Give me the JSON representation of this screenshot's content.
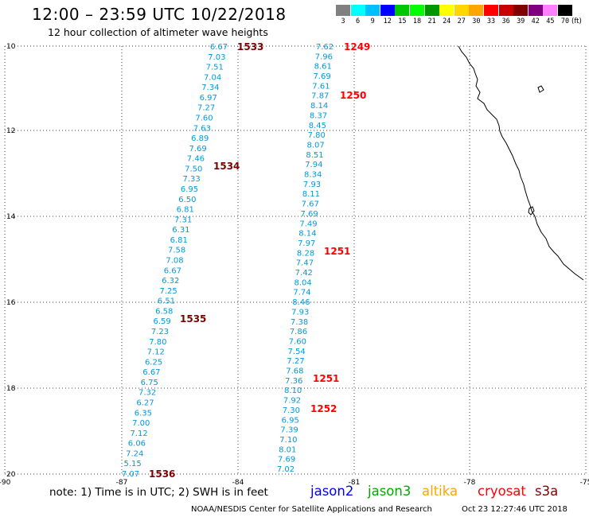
{
  "header": {
    "title": "12:00 – 23:59 UTC 10/22/2018",
    "subtitle": "12 hour collection of altimeter wave heights"
  },
  "legend": {
    "colors": [
      "#808080",
      "#00ffff",
      "#00bfff",
      "#0000ff",
      "#00c800",
      "#00ff00",
      "#009600",
      "#ffff00",
      "#ffd700",
      "#ffa500",
      "#ff0000",
      "#c80000",
      "#800000",
      "#800080",
      "#ff80ff",
      "#000000"
    ],
    "levels": [
      "3",
      "6",
      "9",
      "12",
      "15",
      "18",
      "21",
      "24",
      "27",
      "30",
      "33",
      "36",
      "39",
      "42",
      "45",
      "70"
    ],
    "unit": "(ft)"
  },
  "axes": {
    "lat_labels": [
      "10",
      "12",
      "14",
      "16",
      "18",
      "20"
    ],
    "lon_labels": [
      "-90",
      "-87",
      "-84",
      "-81",
      "-78",
      "-75"
    ]
  },
  "tracks": [
    {
      "color": "#0099dd",
      "values": [
        "6.67",
        "7.03",
        "7.51",
        "7.04",
        "7.34",
        "6.97",
        "7.27",
        "7.60",
        "7.63",
        "6.89",
        "7.69",
        "7.46",
        "7.50",
        "7.33",
        "6.95",
        "6.50",
        "6.81",
        "7.31",
        "6.31",
        "6.81",
        "7.58",
        "7.08",
        "6.67",
        "6.32",
        "7.25",
        "6.51",
        "6.58",
        "6.59",
        "7.23",
        "7.80",
        "7.12",
        "6.25",
        "6.67",
        "6.75",
        "7.32",
        "6.27",
        "6.35",
        "7.00",
        "7.12",
        "6.06",
        "7.24",
        "5.15",
        "7.07"
      ]
    },
    {
      "color": "#0099dd",
      "values": [
        "7.62",
        "7.96",
        "8.61",
        "7.69",
        "7.61",
        "7.87",
        "8.14",
        "8.37",
        "8.45",
        "7.80",
        "8.07",
        "8.51",
        "7.94",
        "8.34",
        "7.93",
        "8.11",
        "7.67",
        "7.69",
        "7.49",
        "8.14",
        "7.97",
        "8.28",
        "7.47",
        "7.42",
        "8.04",
        "7.74",
        "8.46",
        "7.93",
        "7.38",
        "7.86",
        "7.60",
        "7.54",
        "7.27",
        "7.68",
        "7.36",
        "8.10",
        "7.92",
        "7.30",
        "6.95",
        "7.39",
        "7.10",
        "8.01",
        "7.69",
        "7.02"
      ]
    }
  ],
  "time_labels": [
    {
      "text": "1533",
      "color": "#800000"
    },
    {
      "text": "1534",
      "color": "#800000"
    },
    {
      "text": "1535",
      "color": "#800000"
    },
    {
      "text": "1536",
      "color": "#800000"
    },
    {
      "text": "1249",
      "color": "#ff0000"
    },
    {
      "text": "1250",
      "color": "#ff0000"
    },
    {
      "text": "1251",
      "color": "#ff0000"
    },
    {
      "text": "1251",
      "color": "#ff0000"
    },
    {
      "text": "1252",
      "color": "#ff0000"
    }
  ],
  "footer": {
    "note": "note:  1) Time is in UTC;  2) SWH is in feet",
    "satellites": [
      {
        "name": "jason2",
        "color": "#0000ff"
      },
      {
        "name": "jason3",
        "color": "#00aa00"
      },
      {
        "name": "altika",
        "color": "#ffa500"
      },
      {
        "name": "cryosat",
        "color": "#ff0000"
      },
      {
        "name": "s3a",
        "color": "#800000"
      }
    ],
    "credit": "NOAA/NESDIS Center for Satellite Applications and Research",
    "timestamp": "Oct 23 12:27:46 UTC 2018"
  }
}
